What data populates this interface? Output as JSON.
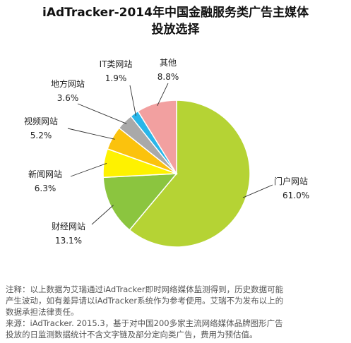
{
  "title_line1": "iAdTracker-2014年中国金融服务类广告主媒体",
  "title_line2": "投放选择",
  "chart_data": {
    "type": "pie",
    "title": "iAdTracker-2014年中国金融服务类广告主媒体投放选择",
    "slices": [
      {
        "label": "门户网站",
        "value": 61.0,
        "value_text": "61.0%",
        "color": "#b5d334"
      },
      {
        "label": "财经网站",
        "value": 13.1,
        "value_text": "13.1%",
        "color": "#8bc53f"
      },
      {
        "label": "新闻网站",
        "value": 6.3,
        "value_text": "6.3%",
        "color": "#fef200"
      },
      {
        "label": "视频网站",
        "value": 5.2,
        "value_text": "5.2%",
        "color": "#fbc20d"
      },
      {
        "label": "地方网站",
        "value": 3.6,
        "value_text": "3.6%",
        "color": "#a9a9a9"
      },
      {
        "label": "IT类网站",
        "value": 1.9,
        "value_text": "1.9%",
        "color": "#29b6e9"
      },
      {
        "label": "其他",
        "value": 8.8,
        "value_text": "8.8%",
        "color": "#f2a0a0"
      }
    ],
    "start": "12 o'clock",
    "direction": "clockwise"
  },
  "notes": {
    "line1": "注释：以上数据为艾瑞通过iAdTracker即时网络媒体监测得到，历史数据可能",
    "line2": "产生波动，如有差异请以iAdTracker系统作为参考使用。艾瑞不为发布以上的",
    "line3": "数据承担法律责任。",
    "line4": "来源：iAdTracker. 2015.3，基于对中国200多家主流网络媒体品牌图形广告",
    "line5": "投放的日监测数据统计不含文字链及部分定向类广告，费用为预估值。"
  }
}
